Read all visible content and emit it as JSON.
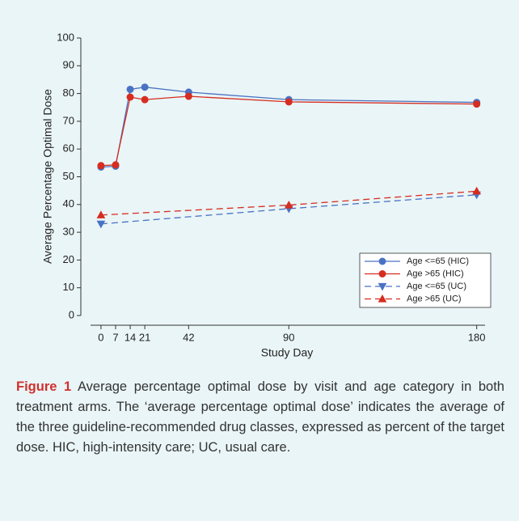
{
  "chart_data": {
    "type": "line",
    "x_label": "Study Day",
    "y_label": "Average Percentage Optimal Dose",
    "xlim": [
      -5,
      184
    ],
    "xticks": [
      0,
      7,
      14,
      21,
      42,
      90,
      180
    ],
    "ylim": [
      0,
      100
    ],
    "yticks": [
      0,
      10,
      20,
      30,
      40,
      50,
      60,
      70,
      80,
      90,
      100
    ],
    "legend": "lower right",
    "series": [
      {
        "name": "Age <=65 (HIC)",
        "color": "#4a72c4",
        "line_style": "solid",
        "marker": "circle",
        "x": [
          0,
          7,
          14,
          21,
          42,
          90,
          180
        ],
        "values": [
          53.5,
          53.8,
          81.5,
          82.3,
          80.5,
          77.8,
          76.8
        ]
      },
      {
        "name": "Age >65 (HIC)",
        "color": "#d62d20",
        "line_style": "solid",
        "marker": "circle",
        "x": [
          0,
          7,
          14,
          21,
          42,
          90,
          180
        ],
        "values": [
          54,
          54.3,
          78.7,
          77.8,
          79,
          77,
          76.2
        ]
      },
      {
        "name": "Age <=65 (UC)",
        "color": "#4a72c4",
        "line_style": "dashed",
        "marker": "triangle-down",
        "x": [
          0,
          90,
          180
        ],
        "values": [
          33,
          38.5,
          43.5
        ]
      },
      {
        "name": "Age >65 (UC)",
        "color": "#d62d20",
        "line_style": "dashed",
        "marker": "triangle-up",
        "x": [
          0,
          90,
          180
        ],
        "values": [
          36.2,
          39.8,
          44.8
        ]
      }
    ]
  },
  "caption": {
    "label": "Figure 1",
    "text": "Average percentage optimal dose by visit and age category in both treatment arms. The ‘average percentage optimal dose’ indicates the average of the three guideline-recommended drug classes, expressed as percent of the target dose. HIC, high-intensity care; UC, usual care."
  }
}
